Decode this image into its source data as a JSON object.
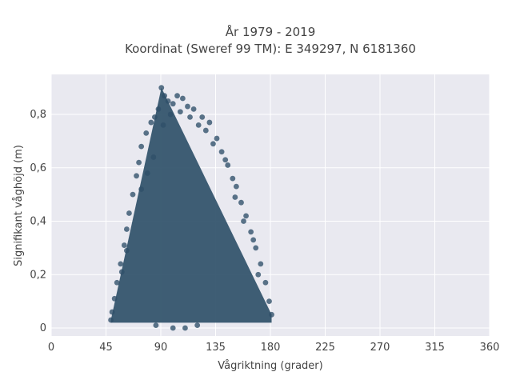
{
  "chart_data": {
    "type": "scatter",
    "title": "År 1979 - 2019",
    "subtitle": "Koordinat (Sweref 99 TM): E 349297, N 6181360",
    "xlabel": "Vågriktning (grader)",
    "ylabel": "Signifikant våghöjd (m)",
    "xlim": [
      0,
      360
    ],
    "ylim": [
      -0.03,
      0.95
    ],
    "xticks": [
      0,
      45,
      90,
      135,
      180,
      225,
      270,
      315,
      360
    ],
    "xtick_labels": [
      "0",
      "45",
      "90",
      "135",
      "180",
      "225",
      "270",
      "315",
      "360"
    ],
    "yticks": [
      0,
      0.2,
      0.4,
      0.6,
      0.8
    ],
    "ytick_labels": [
      "0",
      "0,2",
      "0,4",
      "0,6",
      "0,8"
    ],
    "grid": true,
    "marker_color": "#2f5069",
    "plot_bg": "#e9e9f0",
    "series": [
      {
        "points": [
          [
            90.5,
            0.9
          ],
          [
            93.0,
            0.87
          ],
          [
            103.5,
            0.87
          ],
          [
            96.0,
            0.85
          ],
          [
            108.0,
            0.86
          ],
          [
            88.0,
            0.82
          ],
          [
            100.0,
            0.84
          ],
          [
            112.0,
            0.83
          ],
          [
            117.0,
            0.82
          ],
          [
            85.0,
            0.79
          ],
          [
            124.0,
            0.79
          ],
          [
            82.0,
            0.77
          ],
          [
            130.0,
            0.77
          ],
          [
            78.0,
            0.73
          ],
          [
            127.0,
            0.74
          ],
          [
            136.0,
            0.71
          ],
          [
            74.0,
            0.68
          ],
          [
            140.0,
            0.66
          ],
          [
            72.0,
            0.62
          ],
          [
            145.0,
            0.61
          ],
          [
            70.0,
            0.57
          ],
          [
            149.0,
            0.56
          ],
          [
            67.0,
            0.5
          ],
          [
            152.0,
            0.53
          ],
          [
            64.0,
            0.43
          ],
          [
            156.0,
            0.47
          ],
          [
            62.0,
            0.37
          ],
          [
            160.0,
            0.42
          ],
          [
            60.0,
            0.31
          ],
          [
            164.0,
            0.36
          ],
          [
            57.0,
            0.24
          ],
          [
            168.0,
            0.3
          ],
          [
            54.0,
            0.17
          ],
          [
            172.0,
            0.24
          ],
          [
            52.0,
            0.11
          ],
          [
            176.0,
            0.17
          ],
          [
            50.0,
            0.06
          ],
          [
            179.0,
            0.1
          ],
          [
            181.0,
            0.05
          ],
          [
            49.0,
            0.03
          ],
          [
            86.0,
            0.01
          ],
          [
            100.0,
            0.0
          ],
          [
            110.0,
            0.0
          ],
          [
            120.0,
            0.01
          ],
          [
            74.0,
            0.52
          ],
          [
            79.0,
            0.58
          ],
          [
            84.0,
            0.64
          ],
          [
            92.0,
            0.76
          ],
          [
            98.0,
            0.8
          ],
          [
            106.0,
            0.81
          ],
          [
            114.0,
            0.79
          ],
          [
            121.0,
            0.76
          ],
          [
            133.0,
            0.69
          ],
          [
            143.0,
            0.63
          ],
          [
            151.0,
            0.49
          ],
          [
            158.0,
            0.4
          ],
          [
            166.0,
            0.33
          ],
          [
            62.0,
            0.29
          ],
          [
            58.0,
            0.21
          ],
          [
            170.0,
            0.2
          ]
        ]
      }
    ]
  }
}
